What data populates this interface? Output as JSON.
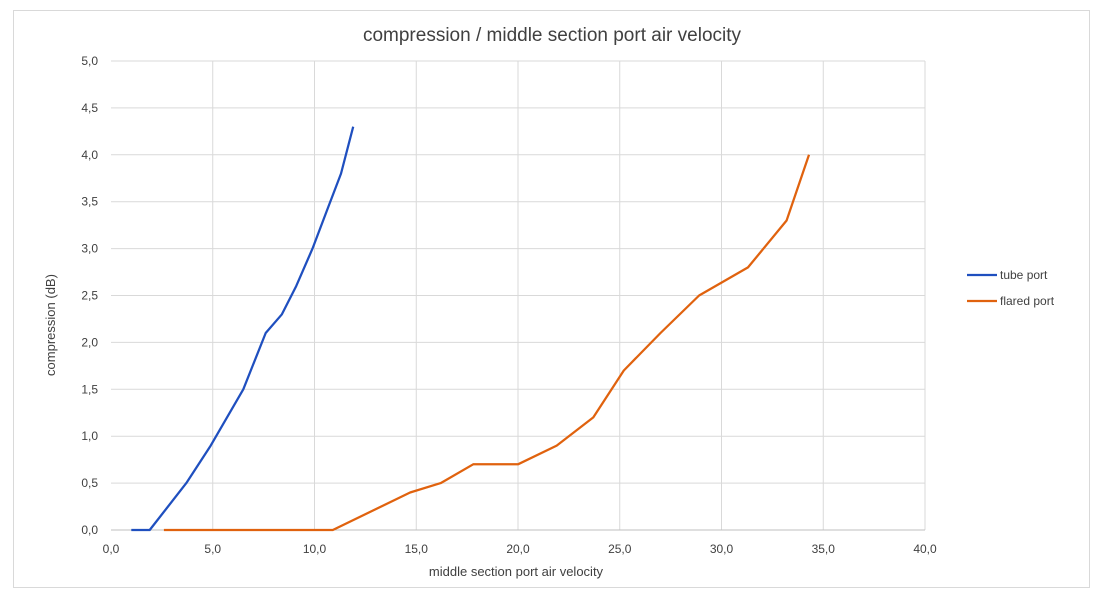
{
  "chart_data": {
    "type": "line",
    "title": "compression / middle section port air velocity",
    "xlabel": "middle section port air velocity",
    "ylabel": "compression (dB)",
    "xlim": [
      0,
      40
    ],
    "ylim": [
      0,
      5
    ],
    "xticks": [
      "0,0",
      "5,0",
      "10,0",
      "15,0",
      "20,0",
      "25,0",
      "30,0",
      "35,0",
      "40,0"
    ],
    "yticks": [
      "0,0",
      "0,5",
      "1,0",
      "1,5",
      "2,0",
      "2,5",
      "3,0",
      "3,5",
      "4,0",
      "4,5",
      "5,0"
    ],
    "grid": true,
    "legend_position": "right",
    "series": [
      {
        "name": "tube port",
        "color": "#1f4fbf",
        "points": [
          [
            1.0,
            0.0
          ],
          [
            1.9,
            0.0
          ],
          [
            3.7,
            0.5
          ],
          [
            4.9,
            0.9
          ],
          [
            6.5,
            1.5
          ],
          [
            7.6,
            2.1
          ],
          [
            8.4,
            2.3
          ],
          [
            9.1,
            2.6
          ],
          [
            9.9,
            3.0
          ],
          [
            10.6,
            3.4
          ],
          [
            11.3,
            3.8
          ],
          [
            11.9,
            4.3
          ]
        ]
      },
      {
        "name": "flared port",
        "color": "#e0620e",
        "points": [
          [
            2.6,
            0.0
          ],
          [
            10.9,
            0.0
          ],
          [
            14.7,
            0.4
          ],
          [
            16.2,
            0.5
          ],
          [
            17.8,
            0.7
          ],
          [
            20.0,
            0.7
          ],
          [
            21.9,
            0.9
          ],
          [
            23.7,
            1.2
          ],
          [
            25.2,
            1.7
          ],
          [
            27.0,
            2.1
          ],
          [
            28.9,
            2.5
          ],
          [
            31.3,
            2.8
          ],
          [
            33.2,
            3.3
          ],
          [
            34.3,
            4.0
          ]
        ]
      }
    ]
  }
}
